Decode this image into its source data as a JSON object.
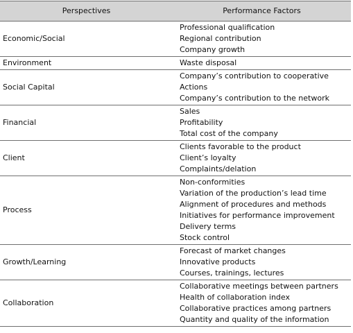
{
  "table": {
    "headers": {
      "perspectives": "Perspectives",
      "factors": "Performance Factors"
    },
    "rows": [
      {
        "perspective": "Economic/Social",
        "factors": [
          "Professional qualification",
          "Regional contribution",
          "Company growth"
        ]
      },
      {
        "perspective": "Environment",
        "factors": [
          "Waste disposal"
        ]
      },
      {
        "perspective": "Social Capital",
        "factors": [
          "Company’s contribution to cooperative",
          "Actions",
          "Company’s contribution to the network"
        ]
      },
      {
        "perspective": "Financial",
        "factors": [
          "Sales",
          "Profitability",
          "Total cost of the company"
        ]
      },
      {
        "perspective": "Client",
        "factors": [
          "Clients favorable to the product",
          "Client’s loyalty",
          "Complaints/delation"
        ]
      },
      {
        "perspective": "Process",
        "factors": [
          "Non-conformities",
          "Variation of the production’s lead time",
          "Alignment of procedures and methods",
          "Initiatives for performance improvement",
          "Delivery terms",
          "Stock control"
        ]
      },
      {
        "perspective": "Growth/Learning",
        "factors": [
          "Forecast of market changes",
          "Innovative products",
          "Courses, trainings, lectures"
        ]
      },
      {
        "perspective": "Collaboration",
        "factors": [
          "Collaborative meetings between partners",
          "Health of collaboration index",
          "Collaborative practices among partners",
          "Quantity and quality of the information"
        ]
      }
    ]
  },
  "colors": {
    "header_bg": "#d4d4d4",
    "rule": "#6f6f6f",
    "text": "#111111"
  }
}
